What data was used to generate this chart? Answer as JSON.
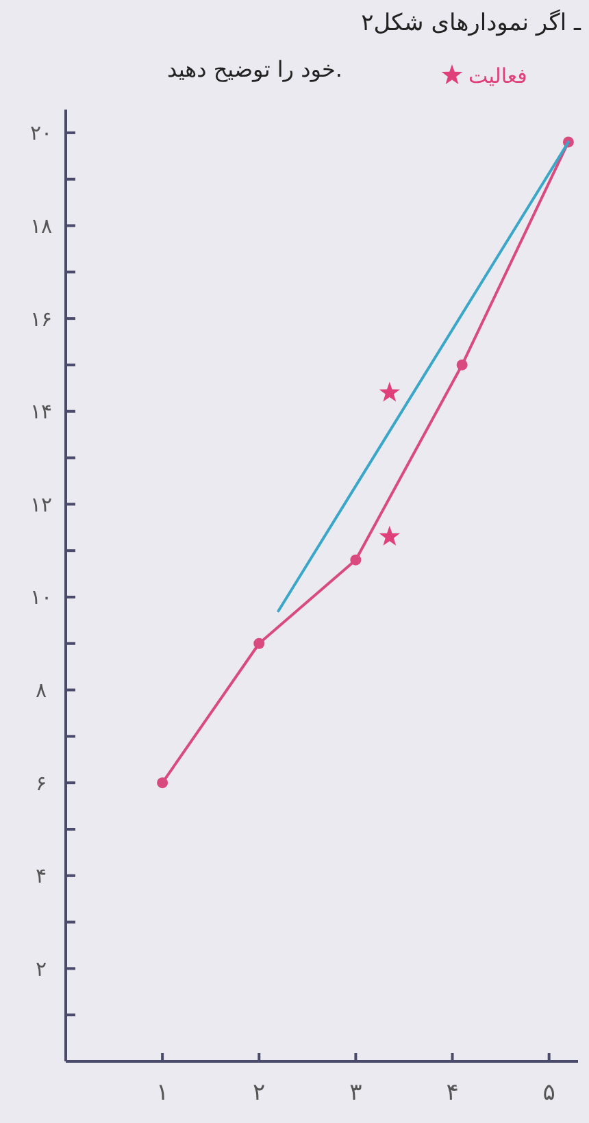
{
  "chart_data": {
    "type": "line",
    "title": "۲ـ اگر نمودارهای شکل",
    "subtitle": "خود را توضیح دهید.",
    "xlim": [
      0,
      5.3
    ],
    "ylim": [
      0,
      20.5
    ],
    "xticks": [
      {
        "value": 1,
        "label": "۱"
      },
      {
        "value": 2,
        "label": "۲"
      },
      {
        "value": 3,
        "label": "۳"
      },
      {
        "value": 4,
        "label": "۴"
      },
      {
        "value": 5,
        "label": "۵"
      }
    ],
    "yticks": [
      {
        "value": 1,
        "label": null
      },
      {
        "value": 2,
        "label": "۲"
      },
      {
        "value": 3,
        "label": null
      },
      {
        "value": 4,
        "label": "۴"
      },
      {
        "value": 5,
        "label": null
      },
      {
        "value": 6,
        "label": "۶"
      },
      {
        "value": 7,
        "label": null
      },
      {
        "value": 8,
        "label": "۸"
      },
      {
        "value": 9,
        "label": null
      },
      {
        "value": 10,
        "label": "۱۰"
      },
      {
        "value": 11,
        "label": null
      },
      {
        "value": 12,
        "label": "۱۲"
      },
      {
        "value": 13,
        "label": null
      },
      {
        "value": 14,
        "label": "۱۴"
      },
      {
        "value": 15,
        "label": null
      },
      {
        "value": 16,
        "label": "۱۶"
      },
      {
        "value": 17,
        "label": null
      },
      {
        "value": 18,
        "label": "۱۸"
      },
      {
        "value": 19,
        "label": null
      },
      {
        "value": 20,
        "label": "۲۰"
      }
    ],
    "grid": false,
    "legend": "top right",
    "series": [
      {
        "color": "#d94a7e",
        "marker": "circle",
        "x": [
          1,
          2,
          3,
          4.1,
          5.2
        ],
        "values": [
          6,
          9,
          10.8,
          15,
          19.8
        ]
      },
      {
        "color": "#3aa6c8",
        "marker": "none",
        "x": [
          2.2,
          5.2
        ],
        "values": [
          9.7,
          19.8
        ]
      },
      {
        "type": "scatter",
        "name": "فعالیت",
        "color": "#e0407a",
        "marker": "star",
        "x": [
          3.35,
          3.35
        ],
        "values": [
          11.3,
          14.4
        ]
      }
    ]
  }
}
